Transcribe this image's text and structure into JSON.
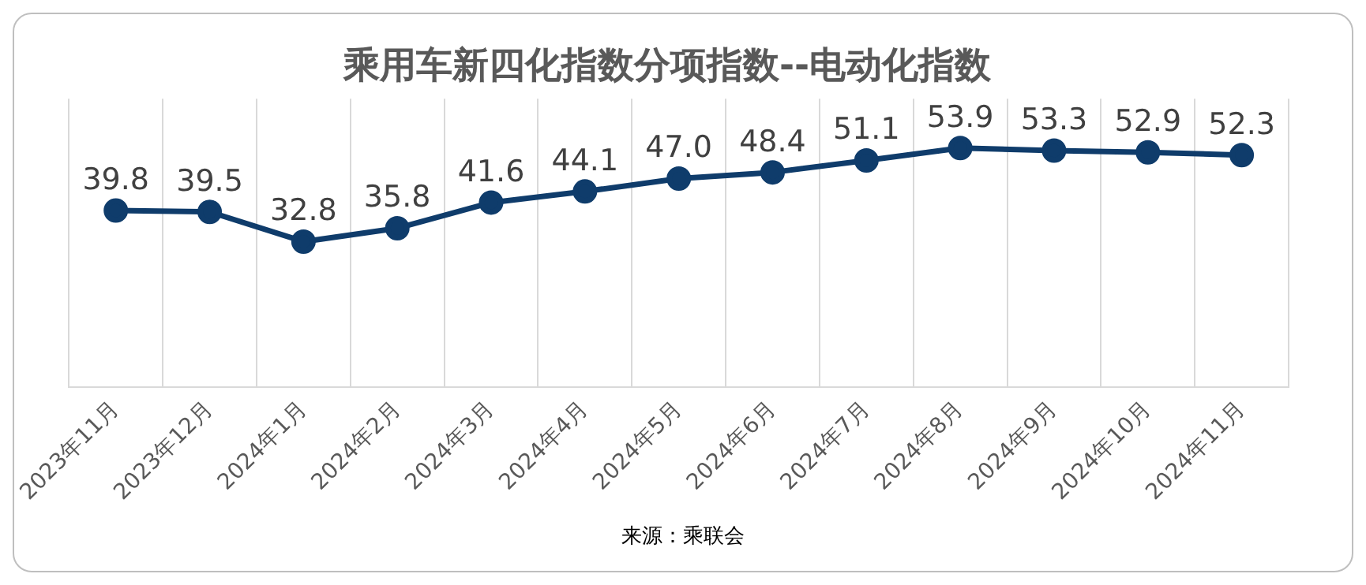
{
  "chart_data": {
    "type": "line",
    "title": "乘用车新四化指数分项指数--电动化指数",
    "categories": [
      "2023年11月",
      "2023年12月",
      "2024年1月",
      "2024年2月",
      "2024年3月",
      "2024年4月",
      "2024年5月",
      "2024年6月",
      "2024年7月",
      "2024年8月",
      "2024年9月",
      "2024年10月",
      "2024年11月"
    ],
    "series": [
      {
        "color": "#0f3c6b",
        "values": [
          39.8,
          39.5,
          32.8,
          35.8,
          41.6,
          44.1,
          47.0,
          48.4,
          51.1,
          53.9,
          53.3,
          52.9,
          52.3
        ],
        "value_labels": [
          "39.8",
          "39.5",
          "32.8",
          "35.8",
          "41.6",
          "44.1",
          "47.0",
          "48.4",
          "51.1",
          "53.9",
          "53.3",
          "52.9",
          "52.3"
        ]
      }
    ],
    "ylim": [
      0,
      65
    ],
    "grid": "x",
    "tick_labels": "x",
    "marker": "circle",
    "line_style": "solid",
    "annotations": [
      "来源：乘联会"
    ]
  }
}
